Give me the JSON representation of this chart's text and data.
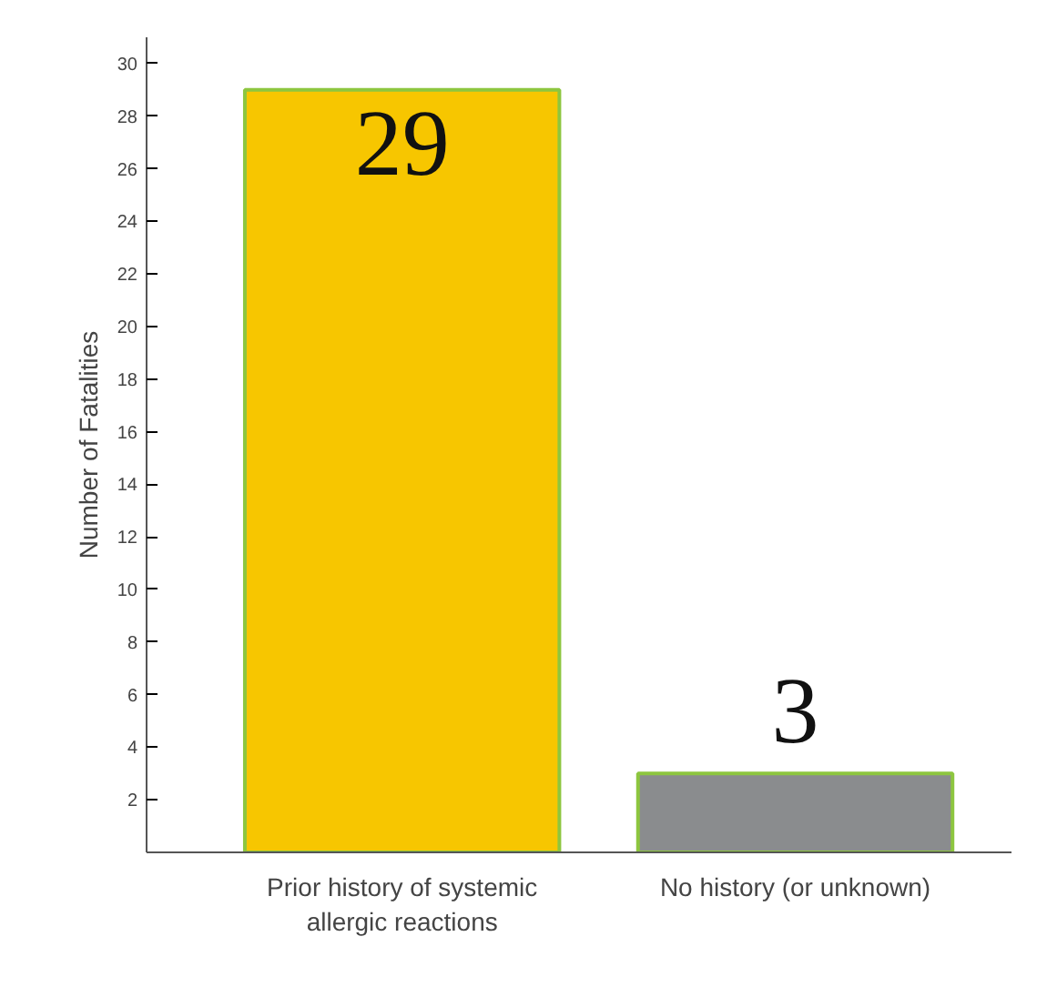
{
  "chart_data": {
    "type": "bar",
    "ylabel": "Number of Fatalities",
    "categories": [
      "Prior history of systemic allergic reactions",
      "No history (or unknown)"
    ],
    "values": [
      29,
      3
    ],
    "colors": [
      "#f7c600",
      "#8a8c8e"
    ],
    "ylim": [
      0,
      31
    ],
    "yticks": [
      2,
      4,
      6,
      8,
      10,
      12,
      14,
      16,
      18,
      20,
      22,
      24,
      26,
      28,
      30
    ],
    "data_labels": true,
    "grid": false
  }
}
